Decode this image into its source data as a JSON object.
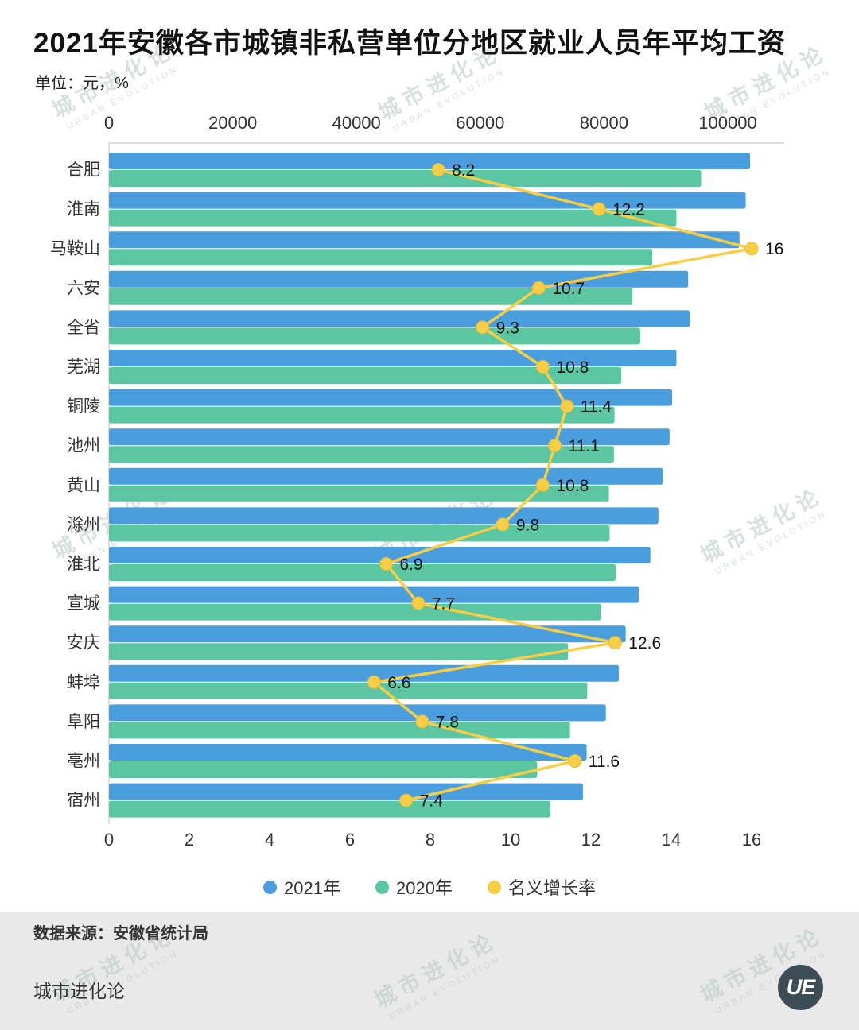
{
  "page": {
    "title": "2021年安徽各市城镇非私营单位分地区就业人员年平均工资",
    "unit_label": "单位：元，%",
    "source_label": "数据来源：安徽省统计局",
    "brand_name": "城市进化论",
    "logo_monogram": "UE",
    "watermark": {
      "cn": "城市进化论",
      "en": "URBAN EVOLUTION"
    }
  },
  "colors": {
    "bar_2021": "#4a9ede",
    "bar_2020": "#5ac6a2",
    "growth_line": "#f8ce46",
    "growth_dot_edge": "#e7bc3c",
    "axis_line": "#d4d4d4",
    "footer_band": "#e9e9e9"
  },
  "chart_data": {
    "type": "bar",
    "orientation": "horizontal",
    "title": "2021年安徽各市城镇非私营单位分地区就业人员年平均工资",
    "unit": "元，%",
    "categories": [
      "合肥",
      "淮南",
      "马鞍山",
      "六安",
      "全省",
      "芜湖",
      "铜陵",
      "池州",
      "黄山",
      "滁州",
      "淮北",
      "宣城",
      "安庆",
      "蚌埠",
      "阜阳",
      "亳州",
      "宿州"
    ],
    "series": [
      {
        "name": "2021年",
        "type": "bar",
        "color": "#4a9ede",
        "values": [
          103600,
          102900,
          101900,
          93600,
          93861,
          91700,
          91000,
          90600,
          89500,
          88800,
          87500,
          85600,
          83500,
          82400,
          80300,
          77200,
          76600
        ]
      },
      {
        "name": "2020年",
        "type": "bar",
        "color": "#5ac6a2",
        "values": [
          95700,
          91700,
          87800,
          84600,
          85854,
          82800,
          81700,
          81600,
          80800,
          80900,
          81900,
          79500,
          74200,
          77300,
          74500,
          69200,
          71300
        ]
      },
      {
        "name": "名义增长率",
        "type": "line",
        "color": "#f8ce46",
        "values": [
          8.2,
          12.2,
          16,
          10.7,
          9.3,
          10.8,
          11.4,
          11.1,
          10.8,
          9.8,
          6.9,
          7.7,
          12.6,
          6.6,
          7.8,
          11.6,
          7.4
        ]
      }
    ],
    "wage_axis": {
      "position": "top",
      "ticks": [
        0,
        20000,
        40000,
        60000,
        80000,
        100000
      ],
      "range": [
        0,
        109000
      ]
    },
    "growth_axis": {
      "position": "bottom",
      "ticks": [
        0,
        2,
        4,
        6,
        8,
        10,
        12,
        14,
        16
      ],
      "range": [
        0,
        16.8
      ]
    },
    "grid": false,
    "legend_position": "bottom",
    "legend": [
      {
        "label": "2021年",
        "color": "#4a9ede"
      },
      {
        "label": "2020年",
        "color": "#5ac6a2"
      },
      {
        "label": "名义增长率",
        "color": "#f8ce46"
      }
    ]
  }
}
